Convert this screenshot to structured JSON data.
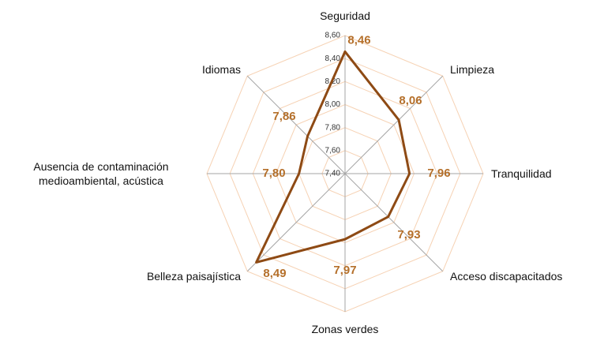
{
  "chart_data": {
    "type": "radar",
    "categories": [
      "Seguridad",
      "Limpieza",
      "Tranquilidad",
      "Acceso discapacitados",
      "Zonas verdes",
      "Belleza paisajística",
      "Ausencia de contaminación medioambiental, acústica",
      "Idiomas"
    ],
    "values": [
      8.46,
      8.06,
      7.96,
      7.93,
      7.97,
      8.49,
      7.8,
      7.86
    ],
    "value_labels": [
      "8,46",
      "8,06",
      "7,96",
      "7,93",
      "7,97",
      "8,49",
      "7,80",
      "7,86"
    ],
    "color": "#8e4a14",
    "ylim": [
      7.4,
      8.6
    ],
    "yticks": [
      {
        "value": 7.4,
        "label": "7,40"
      },
      {
        "value": 7.6,
        "label": "7,60"
      },
      {
        "value": 7.8,
        "label": "7,80"
      },
      {
        "value": 8.0,
        "label": "8,00"
      },
      {
        "value": 8.2,
        "label": "8,20"
      },
      {
        "value": 8.4,
        "label": "8,40"
      },
      {
        "value": 8.6,
        "label": "8,60"
      }
    ],
    "grid": true
  }
}
